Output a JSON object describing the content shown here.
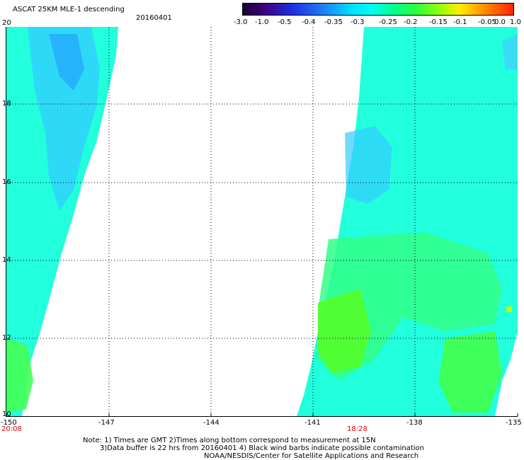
{
  "header": {
    "title": "ASCAT 25KM MLE-1 descending",
    "date": "20160401"
  },
  "colorbar": {
    "labels": [
      "-3.0",
      "-1.0",
      "-0.5",
      "-0.4",
      "-0.35",
      "-0.3",
      "-0.25",
      "-0.2",
      "-0.15",
      "-0.1",
      "-0.05",
      "0.0",
      "1.0"
    ],
    "colors": [
      "#1a0033",
      "#4b00a0",
      "#1e2de0",
      "#1e6ef0",
      "#22b4ff",
      "#00ffee",
      "#00ffbb",
      "#22ff66",
      "#66ff22",
      "#bbff00",
      "#ffe600",
      "#ff8800",
      "#ff2200"
    ]
  },
  "map": {
    "lat_labels": [
      "20",
      "18",
      "16",
      "14",
      "12",
      "10"
    ],
    "lon_labels": [
      "-150",
      "-147",
      "-144",
      "-141",
      "-138",
      "-135"
    ],
    "time_labels": [
      "20:08",
      "18:28"
    ]
  },
  "notes": {
    "line1": "Note: 1) Times are GMT 2)Times along bottom correspond to measurement at 15N",
    "line2": "3)Data buffer is 22 hrs from 20160401 4) Black wind barbs indicate possible contamination",
    "line3": "NOAA/NESDIS/Center for Satellite Applications and Research"
  }
}
